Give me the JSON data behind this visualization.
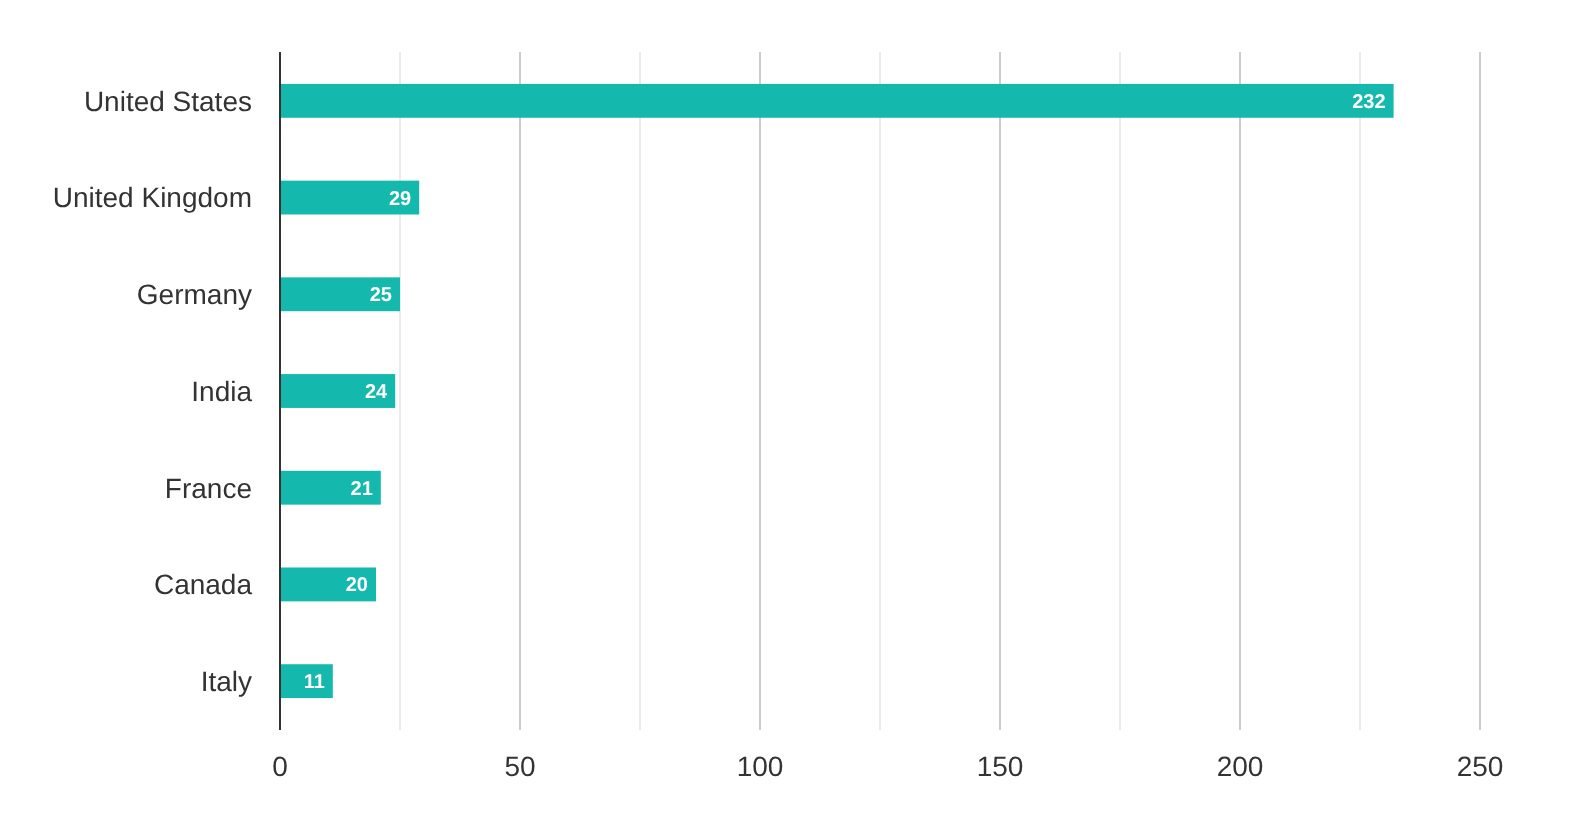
{
  "chart_data": {
    "type": "bar",
    "orientation": "horizontal",
    "categories": [
      "United States",
      "United Kingdom",
      "Germany",
      "India",
      "France",
      "Canada",
      "Italy"
    ],
    "values": [
      232,
      29,
      25,
      24,
      21,
      20,
      11
    ],
    "color": "#14b8ad",
    "xlim": [
      0,
      250
    ],
    "xticks": [
      0,
      {
        "value": 25,
        "label": null
      },
      50,
      {
        "value": 75,
        "label": null
      },
      100,
      {
        "value": 125,
        "label": null
      },
      150,
      {
        "value": 175,
        "label": null
      },
      200,
      {
        "value": 225,
        "label": null
      },
      250
    ],
    "grid": "x",
    "data_labels": true
  }
}
